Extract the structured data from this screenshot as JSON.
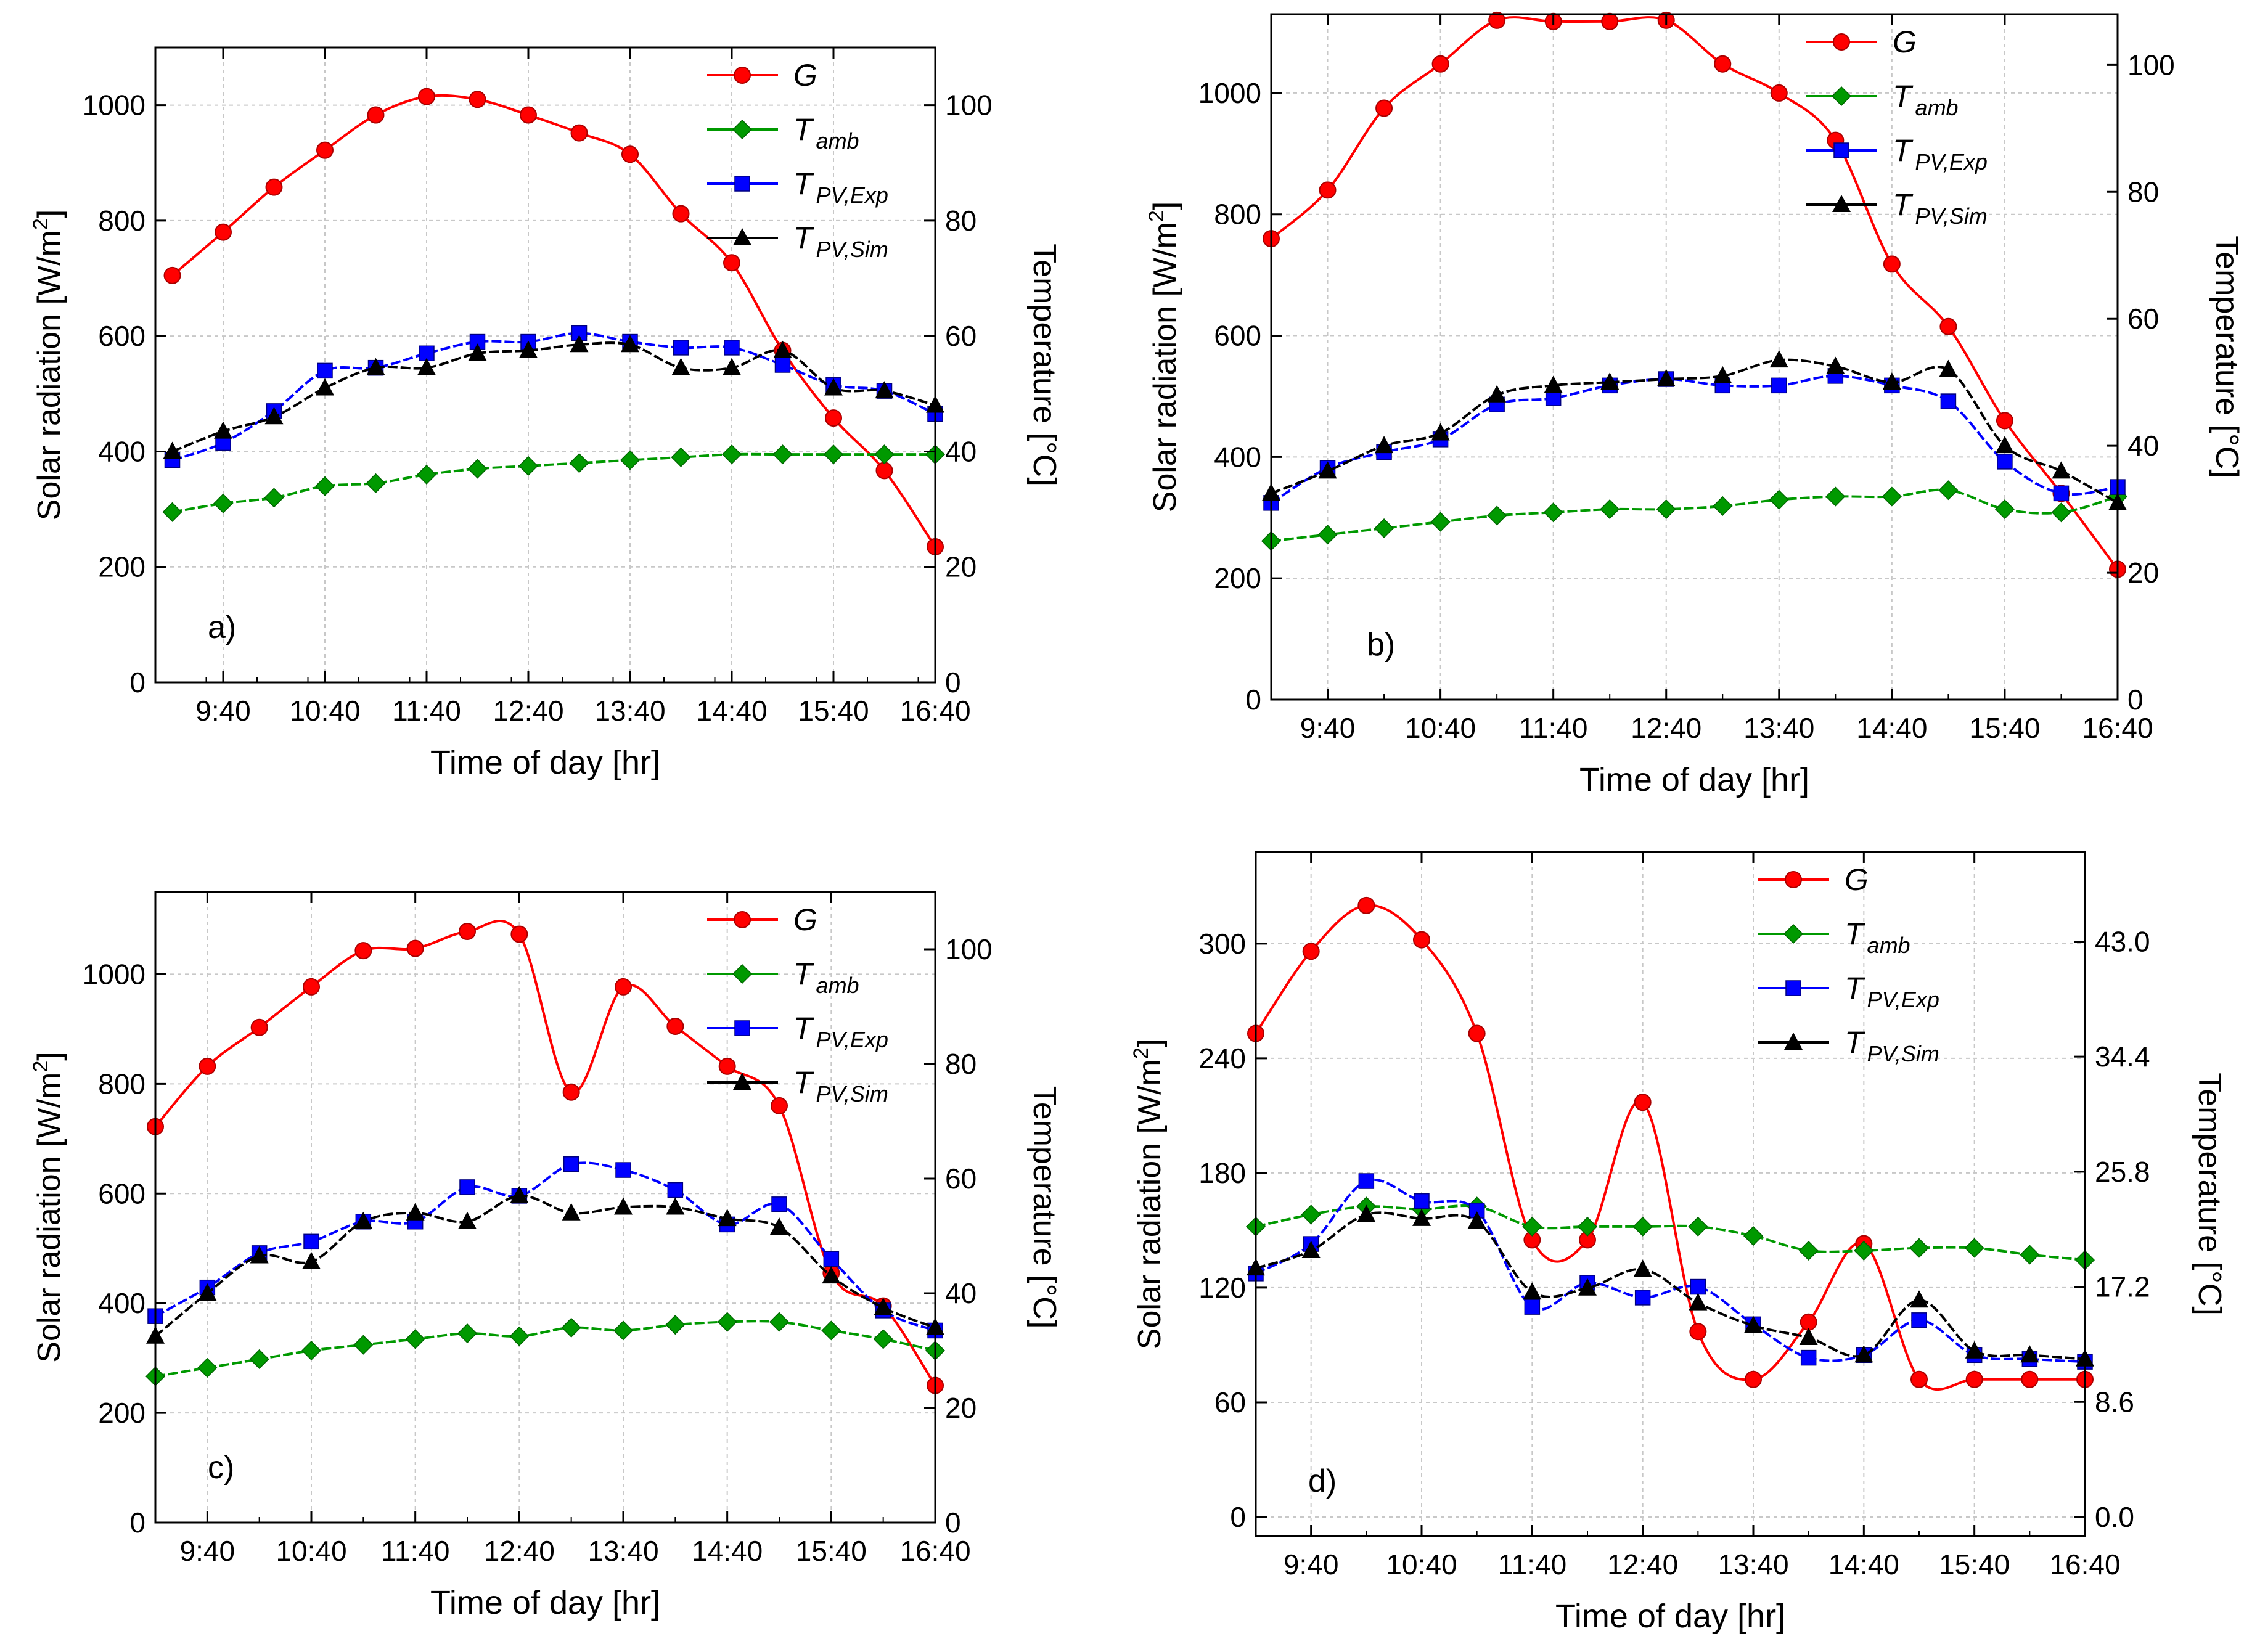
{
  "chart_data": [
    {
      "panel_label": "a)",
      "type": "line",
      "xlabel": "Time of day [hr]",
      "ylabel": "Solar radiation [W/m2]",
      "ylabel_main": "Solar radiation [W/m",
      "ylabel_sup": "2",
      "ylabel_end": "]",
      "y2label": "Temperature [°C]",
      "xlim": [
        540,
        1000
      ],
      "x_ticks": [
        580,
        640,
        700,
        760,
        820,
        880,
        940,
        1000
      ],
      "x_tick_labels": [
        "9:40",
        "10:40",
        "11:40",
        "12:40",
        "13:40",
        "14:40",
        "15:40",
        "16:40"
      ],
      "ylim": [
        0,
        1100
      ],
      "y_ticks": [
        0,
        200,
        400,
        600,
        800,
        1000
      ],
      "y_tick_labels": [
        "0",
        "200",
        "400",
        "600",
        "800",
        "1000"
      ],
      "y2lim": [
        0,
        110
      ],
      "y2_ticks": [
        0,
        20,
        40,
        60,
        80,
        100
      ],
      "y2_tick_labels": [
        "0",
        "20",
        "40",
        "60",
        "80",
        "100"
      ],
      "x": [
        550,
        580,
        610,
        640,
        670,
        700,
        730,
        760,
        790,
        820,
        850,
        880,
        910,
        940,
        970,
        1000
      ],
      "series": [
        {
          "key": "G",
          "name": "G",
          "subscript": "",
          "axis": "left",
          "color": "#ff0000",
          "marker": "circle",
          "values": [
            705,
            780,
            858,
            922,
            983,
            1015,
            1010,
            983,
            952,
            915,
            812,
            727,
            575,
            458,
            367,
            235
          ]
        },
        {
          "key": "Tamb",
          "name": "T",
          "subscript": "amb",
          "axis": "right",
          "color": "#009900",
          "marker": "diamond",
          "values": [
            29.5,
            31,
            32,
            34,
            34.5,
            36,
            37,
            37.5,
            38,
            38.5,
            39,
            39.5,
            39.5,
            39.5,
            39.5,
            39.5
          ]
        },
        {
          "key": "TpvExp",
          "name": "T",
          "subscript": "PV,Exp",
          "axis": "right",
          "color": "#0000ff",
          "marker": "square",
          "values": [
            38.5,
            41.5,
            47,
            54,
            54.5,
            57,
            59,
            59,
            60.5,
            59,
            58,
            58,
            55,
            51.5,
            50.5,
            46.5
          ]
        },
        {
          "key": "TpvSim",
          "name": "T",
          "subscript": "PV,Sim",
          "axis": "right",
          "color": "#000000",
          "marker": "triangle",
          "values": [
            40,
            43.5,
            46,
            51,
            54.5,
            54.5,
            57,
            57.5,
            58.5,
            58.5,
            54.5,
            54.5,
            57.5,
            51,
            50.5,
            48
          ]
        }
      ]
    },
    {
      "panel_label": "b)",
      "type": "line",
      "xlabel": "Time of day [hr]",
      "ylabel": "Solar radiation [W/m2]",
      "ylabel_main": "Solar radiation [W/m",
      "ylabel_sup": "2",
      "ylabel_end": "]",
      "y2label": "Temperature [°C]",
      "xlim": [
        550,
        1000
      ],
      "x_ticks": [
        580,
        640,
        700,
        760,
        820,
        880,
        940,
        1000
      ],
      "x_tick_labels": [
        "9:40",
        "10:40",
        "11:40",
        "12:40",
        "13:40",
        "14:40",
        "15:40",
        "16:40"
      ],
      "ylim": [
        0,
        1130
      ],
      "y_ticks": [
        0,
        200,
        400,
        600,
        800,
        1000
      ],
      "y_tick_labels": [
        "0",
        "200",
        "400",
        "600",
        "800",
        "1000"
      ],
      "y2lim": [
        0,
        108
      ],
      "y2_ticks": [
        0,
        20,
        40,
        60,
        80,
        100
      ],
      "y2_tick_labels": [
        "0",
        "20",
        "40",
        "60",
        "80",
        "100"
      ],
      "x": [
        550,
        580,
        610,
        640,
        670,
        700,
        730,
        760,
        790,
        820,
        850,
        880,
        910,
        940,
        970,
        1000
      ],
      "series": [
        {
          "key": "G",
          "name": "G",
          "subscript": "",
          "axis": "left",
          "color": "#ff0000",
          "marker": "circle",
          "values": [
            760,
            840,
            975,
            1048,
            1120,
            1118,
            1118,
            1120,
            1048,
            1000,
            922,
            718,
            615,
            460,
            340,
            215
          ]
        },
        {
          "key": "Tamb",
          "name": "T",
          "subscript": "amb",
          "axis": "right",
          "color": "#009900",
          "marker": "diamond",
          "values": [
            25,
            26,
            27,
            28,
            29,
            29.5,
            30,
            30,
            30.5,
            31.5,
            32,
            32,
            33,
            30,
            29.5,
            32
          ]
        },
        {
          "key": "TpvExp",
          "name": "T",
          "subscript": "PV,Exp",
          "axis": "right",
          "color": "#0000ff",
          "marker": "square",
          "values": [
            31,
            36.5,
            39,
            41,
            46.5,
            47.5,
            49.5,
            50.5,
            49.5,
            49.5,
            51,
            49.5,
            47,
            37.5,
            32.5,
            33.5
          ]
        },
        {
          "key": "TpvSim",
          "name": "T",
          "subscript": "PV,Sim",
          "axis": "right",
          "color": "#000000",
          "marker": "triangle",
          "values": [
            32.5,
            36,
            40,
            42,
            48,
            49.5,
            50,
            50.5,
            51,
            53.5,
            52.5,
            50,
            52,
            40,
            36,
            31
          ]
        }
      ]
    },
    {
      "panel_label": "c)",
      "type": "line",
      "xlabel": "Time of day [hr]",
      "ylabel": "Solar radiation [W/m2]",
      "ylabel_main": "Solar radiation [W/m",
      "ylabel_sup": "2",
      "ylabel_end": "]",
      "y2label": "Temperature [°C]",
      "xlim": [
        550,
        1000
      ],
      "x_ticks": [
        580,
        640,
        700,
        760,
        820,
        880,
        940,
        1000
      ],
      "x_tick_labels": [
        "9:40",
        "10:40",
        "11:40",
        "12:40",
        "13:40",
        "14:40",
        "15:40",
        "16:40"
      ],
      "ylim": [
        0,
        1150
      ],
      "y_ticks": [
        0,
        200,
        400,
        600,
        800,
        1000
      ],
      "y_tick_labels": [
        "0",
        "200",
        "400",
        "600",
        "800",
        "1000"
      ],
      "y2lim": [
        0,
        110
      ],
      "y2_ticks": [
        0,
        20,
        40,
        60,
        80,
        100
      ],
      "y2_tick_labels": [
        "0",
        "20",
        "40",
        "60",
        "80",
        "100"
      ],
      "x": [
        550,
        580,
        610,
        640,
        670,
        700,
        730,
        760,
        790,
        820,
        850,
        880,
        910,
        940,
        970,
        1000
      ],
      "series": [
        {
          "key": "G",
          "name": "G",
          "subscript": "",
          "axis": "left",
          "color": "#ff0000",
          "marker": "circle",
          "values": [
            722,
            832,
            903,
            977,
            1043,
            1047,
            1078,
            1073,
            785,
            977,
            905,
            832,
            760,
            455,
            395,
            250
          ]
        },
        {
          "key": "Tamb",
          "name": "T",
          "subscript": "amb",
          "axis": "right",
          "color": "#009900",
          "marker": "diamond",
          "values": [
            25.5,
            27,
            28.5,
            30,
            31,
            32,
            33,
            32.5,
            34,
            33.5,
            34.5,
            35,
            35,
            33.5,
            32,
            30
          ]
        },
        {
          "key": "TpvExp",
          "name": "T",
          "subscript": "PV,Exp",
          "axis": "right",
          "color": "#0000ff",
          "marker": "square",
          "values": [
            36,
            41,
            47,
            49,
            52.5,
            52.5,
            58.5,
            57,
            62.5,
            61.5,
            58,
            52,
            55.5,
            46,
            37,
            33.5
          ]
        },
        {
          "key": "TpvSim",
          "name": "T",
          "subscript": "PV,Sim",
          "axis": "right",
          "color": "#000000",
          "marker": "triangle",
          "values": [
            32.5,
            40,
            46.5,
            45.5,
            52.5,
            54,
            52.5,
            57,
            54,
            55,
            55,
            53,
            51.5,
            43,
            37.5,
            34
          ]
        }
      ]
    },
    {
      "panel_label": "d)",
      "type": "line",
      "xlabel": "Time of day [hr]",
      "ylabel": "Solar radiation [W/m2]",
      "ylabel_main": "Solar radiation [W/m",
      "ylabel_sup": "2",
      "ylabel_end": "]",
      "y2label": "Temperature [°C]",
      "xlim": [
        550,
        1000
      ],
      "x_ticks": [
        580,
        640,
        700,
        760,
        820,
        880,
        940,
        1000
      ],
      "x_tick_labels": [
        "9:40",
        "10:40",
        "11:40",
        "12:40",
        "13:40",
        "14:40",
        "15:40",
        "16:40"
      ],
      "ylim": [
        -10,
        348
      ],
      "y_ticks": [
        0,
        60,
        120,
        180,
        240,
        300
      ],
      "y_tick_labels": [
        "0",
        "60",
        "120",
        "180",
        "240",
        "300"
      ],
      "y2lim": [
        -1.43,
        49.7
      ],
      "y2_ticks": [
        0,
        8.6,
        17.2,
        25.8,
        34.4,
        43.0
      ],
      "y2_tick_labels": [
        "0.0",
        "8.6",
        "17.2",
        "25.8",
        "34.4",
        "43.0"
      ],
      "x": [
        550,
        580,
        610,
        640,
        670,
        700,
        730,
        760,
        790,
        820,
        850,
        880,
        910,
        940,
        970,
        1000
      ],
      "series": [
        {
          "key": "G",
          "name": "G",
          "subscript": "",
          "axis": "left",
          "color": "#ff0000",
          "marker": "circle",
          "values": [
            253,
            296,
            320,
            302,
            253,
            145,
            145,
            217,
            97,
            72,
            102,
            143,
            72,
            72,
            72,
            72
          ]
        },
        {
          "key": "Tamb",
          "name": "T",
          "subscript": "amb",
          "axis": "right",
          "color": "#009900",
          "marker": "diamond",
          "values": [
            21.7,
            22.6,
            23.2,
            23.0,
            23.2,
            21.7,
            21.7,
            21.7,
            21.7,
            21.0,
            19.9,
            19.9,
            20.1,
            20.1,
            19.6,
            19.2
          ]
        },
        {
          "key": "TpvExp",
          "name": "T",
          "subscript": "PV,Exp",
          "axis": "right",
          "color": "#0000ff",
          "marker": "square",
          "values": [
            18.2,
            20.4,
            25.1,
            23.6,
            22.9,
            15.7,
            17.5,
            16.4,
            17.2,
            14.4,
            11.9,
            12.1,
            14.7,
            12.1,
            11.8,
            11.6
          ]
        },
        {
          "key": "TpvSim",
          "name": "T",
          "subscript": "PV,Sim",
          "axis": "right",
          "color": "#000000",
          "marker": "triangle",
          "values": [
            18.6,
            19.9,
            22.6,
            22.3,
            22.1,
            16.8,
            17.1,
            18.5,
            16.0,
            14.3,
            13.4,
            12.1,
            16.2,
            12.4,
            12.1,
            11.8
          ]
        }
      ]
    }
  ]
}
